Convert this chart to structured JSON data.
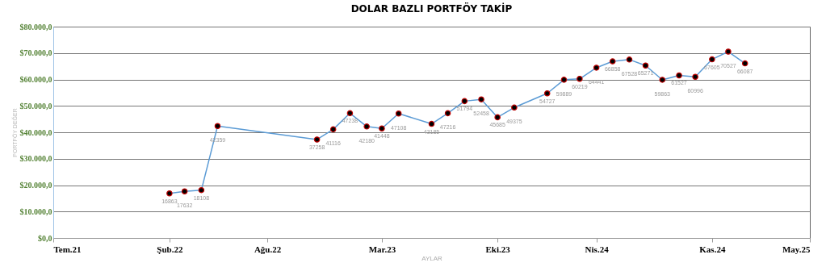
{
  "chart_data": {
    "type": "line",
    "title": "DOLAR BAZLI PORTFÖY TAKİP",
    "xlabel": "AYLAR",
    "ylabel": "PORTFÖY DEĞER",
    "x": [
      "2022-02",
      "2022-03",
      "2022-04",
      "2022-05",
      "2022-11",
      "2022-12",
      "2023-01",
      "2023-02",
      "2023-03",
      "2023-04",
      "2023-06",
      "2023-07",
      "2023-08",
      "2023-09",
      "2023-10",
      "2023-11",
      "2024-01",
      "2024-02",
      "2024-03",
      "2024-04",
      "2024-05",
      "2024-06",
      "2024-07",
      "2024-08",
      "2024-09",
      "2024-10",
      "2024-11",
      "2024-12",
      "2025-01"
    ],
    "series": [
      {
        "color": "#5b9bd5",
        "values": [
          16863,
          17632,
          18108,
          42359,
          37258,
          41116,
          47238,
          42180,
          41448,
          47108,
          43185,
          47216,
          51794,
          52458,
          45685,
          49375,
          54727,
          59889,
          60219,
          64441,
          66858,
          67528,
          65271,
          59863,
          61527,
          60996,
          67605,
          70527,
          66087
        ]
      }
    ],
    "xlim": [
      "2021-07",
      "2025-05"
    ],
    "xticks": [
      {
        "value": "2021-07",
        "label": "Tem.21"
      },
      {
        "value": "2022-02",
        "label": "Şub.22"
      },
      {
        "value": "2022-08",
        "label": "Ağu.22"
      },
      {
        "value": "2023-03",
        "label": "Mar.23"
      },
      {
        "value": "2023-10",
        "label": "Eki.23"
      },
      {
        "value": "2024-04",
        "label": "Nis.24"
      },
      {
        "value": "2024-11",
        "label": "Kas.24"
      },
      {
        "value": "2025-05",
        "label": "May.25"
      }
    ],
    "ylim": [
      0,
      80000
    ],
    "yticks": [
      {
        "value": 0,
        "label": "$0,0"
      },
      {
        "value": 10000,
        "label": "$10.000,0"
      },
      {
        "value": 20000,
        "label": "$20.000,0"
      },
      {
        "value": 30000,
        "label": "$30.000,0"
      },
      {
        "value": 40000,
        "label": "$40.000,0"
      },
      {
        "value": 50000,
        "label": "$50.000,0"
      },
      {
        "value": 60000,
        "label": "$60.000,0"
      },
      {
        "value": 70000,
        "label": "$70.000,0"
      },
      {
        "value": 80000,
        "label": "$80.000,0"
      }
    ],
    "grid": "y",
    "marker": "circle",
    "line_style": "solid",
    "data_labels": true
  }
}
